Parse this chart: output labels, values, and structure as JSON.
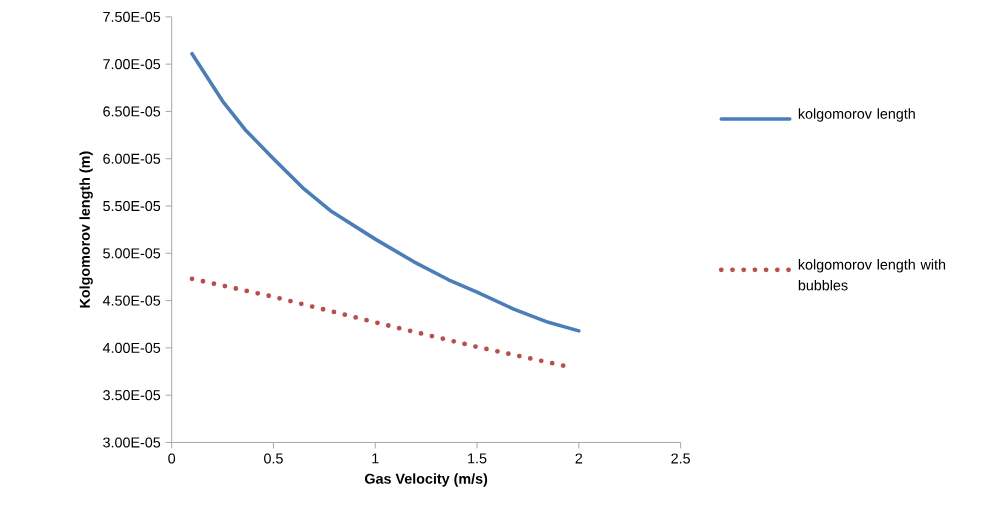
{
  "chart_data": {
    "type": "line",
    "xlabel": "Gas Velocity (m/s)",
    "ylabel": "Kolgomorov length (m)",
    "xlim": [
      0,
      2.5
    ],
    "xticks": [
      0,
      0.5,
      1,
      1.5,
      2,
      2.5
    ],
    "ylim": [
      3e-05,
      7.5e-05
    ],
    "yticks": [
      {
        "value": 3e-05,
        "label": "3.00E-05"
      },
      {
        "value": 3.5e-05,
        "label": "3.50E-05"
      },
      {
        "value": 4e-05,
        "label": "4.00E-05"
      },
      {
        "value": 4.5e-05,
        "label": "4.50E-05"
      },
      {
        "value": 5e-05,
        "label": "5.00E-05"
      },
      {
        "value": 5.5e-05,
        "label": "5.50E-05"
      },
      {
        "value": 6e-05,
        "label": "6.00E-05"
      },
      {
        "value": 6.5e-05,
        "label": "6.50E-05"
      },
      {
        "value": 7e-05,
        "label": "7.00E-05"
      },
      {
        "value": 7.5e-05,
        "label": "7.50E-05"
      }
    ],
    "legend": "right",
    "series": [
      {
        "name": "kolgomorov length",
        "color": "#4a7ebb",
        "line_style": "solid",
        "x": [
          0.1,
          0.25,
          0.36,
          0.5,
          0.65,
          0.78,
          1.0,
          1.19,
          1.36,
          1.5,
          1.68,
          1.85,
          2.0
        ],
        "values": [
          7.11e-05,
          6.61e-05,
          6.31e-05,
          6e-05,
          5.68e-05,
          5.45e-05,
          5.15e-05,
          4.91e-05,
          4.72e-05,
          4.59e-05,
          4.41e-05,
          4.27e-05,
          4.18e-05
        ]
      },
      {
        "name": "kolgomorov length with bubbles",
        "color": "#be4b48",
        "line_style": "dotted",
        "x": [
          0.1,
          0.5,
          1.0,
          1.5,
          1.95
        ],
        "values": [
          4.73e-05,
          4.54e-05,
          4.27e-05,
          4.01e-05,
          3.8e-05
        ]
      }
    ]
  }
}
